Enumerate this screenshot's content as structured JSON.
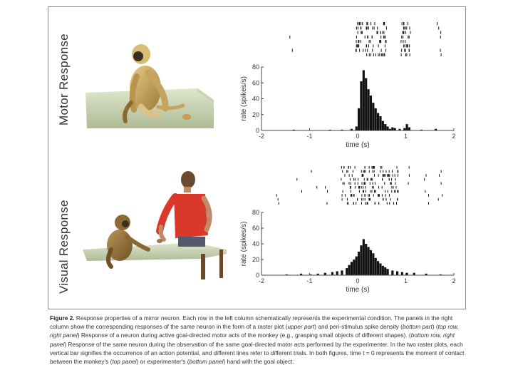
{
  "rows": [
    {
      "label": "Motor Response"
    },
    {
      "label": "Visual Response"
    }
  ],
  "chart_data": [
    {
      "type": "bar",
      "panel": "Motor Response",
      "xlabel": "time (s)",
      "ylabel": "rate (spikes/s)",
      "xlim": [
        -2,
        2
      ],
      "ylim": [
        0,
        80
      ],
      "xticks": [
        -2,
        -1,
        0,
        1,
        2
      ],
      "yticks": [
        0,
        20,
        40,
        60,
        80
      ],
      "bin_width": 0.05,
      "bins": [
        {
          "x": -1.35,
          "y": 1
        },
        {
          "x": -0.6,
          "y": 1
        },
        {
          "x": -0.35,
          "y": 1
        },
        {
          "x": -0.15,
          "y": 2
        },
        {
          "x": -0.05,
          "y": 5
        },
        {
          "x": 0.0,
          "y": 28
        },
        {
          "x": 0.05,
          "y": 62
        },
        {
          "x": 0.1,
          "y": 76
        },
        {
          "x": 0.15,
          "y": 66
        },
        {
          "x": 0.2,
          "y": 52
        },
        {
          "x": 0.25,
          "y": 44
        },
        {
          "x": 0.3,
          "y": 35
        },
        {
          "x": 0.35,
          "y": 28
        },
        {
          "x": 0.4,
          "y": 22
        },
        {
          "x": 0.45,
          "y": 18
        },
        {
          "x": 0.5,
          "y": 12
        },
        {
          "x": 0.55,
          "y": 8
        },
        {
          "x": 0.6,
          "y": 5
        },
        {
          "x": 0.65,
          "y": 2
        },
        {
          "x": 0.7,
          "y": 4
        },
        {
          "x": 0.75,
          "y": 3
        },
        {
          "x": 0.85,
          "y": 2
        },
        {
          "x": 0.95,
          "y": 3
        },
        {
          "x": 1.0,
          "y": 8
        },
        {
          "x": 1.05,
          "y": 4
        },
        {
          "x": 1.3,
          "y": 1
        },
        {
          "x": 1.6,
          "y": 2
        }
      ],
      "raster": {
        "trials": 8,
        "clusters": [
          {
            "start": -0.05,
            "end": 0.6
          },
          {
            "start": 0.9,
            "end": 1.1
          }
        ],
        "isolated": [
          -1.35,
          1.7
        ]
      }
    },
    {
      "type": "bar",
      "panel": "Visual Response",
      "xlabel": "time (s)",
      "ylabel": "rate (spikes/s)",
      "xlim": [
        -2,
        2
      ],
      "ylim": [
        0,
        80
      ],
      "xticks": [
        -2,
        -1,
        0,
        1,
        2
      ],
      "yticks": [
        0,
        20,
        40,
        60,
        80
      ],
      "bin_width": 0.05,
      "bins": [
        {
          "x": -1.5,
          "y": 1
        },
        {
          "x": -1.2,
          "y": 2
        },
        {
          "x": -1.0,
          "y": 1
        },
        {
          "x": -0.85,
          "y": 2
        },
        {
          "x": -0.7,
          "y": 3
        },
        {
          "x": -0.55,
          "y": 4
        },
        {
          "x": -0.45,
          "y": 5
        },
        {
          "x": -0.35,
          "y": 6
        },
        {
          "x": -0.25,
          "y": 9
        },
        {
          "x": -0.2,
          "y": 13
        },
        {
          "x": -0.15,
          "y": 17
        },
        {
          "x": -0.1,
          "y": 20
        },
        {
          "x": -0.05,
          "y": 24
        },
        {
          "x": 0.0,
          "y": 30
        },
        {
          "x": 0.05,
          "y": 38
        },
        {
          "x": 0.1,
          "y": 46
        },
        {
          "x": 0.15,
          "y": 40
        },
        {
          "x": 0.2,
          "y": 36
        },
        {
          "x": 0.25,
          "y": 32
        },
        {
          "x": 0.3,
          "y": 28
        },
        {
          "x": 0.35,
          "y": 22
        },
        {
          "x": 0.4,
          "y": 18
        },
        {
          "x": 0.45,
          "y": 15
        },
        {
          "x": 0.5,
          "y": 12
        },
        {
          "x": 0.55,
          "y": 10
        },
        {
          "x": 0.6,
          "y": 8
        },
        {
          "x": 0.7,
          "y": 6
        },
        {
          "x": 0.8,
          "y": 5
        },
        {
          "x": 0.9,
          "y": 4
        },
        {
          "x": 1.0,
          "y": 3
        },
        {
          "x": 1.15,
          "y": 3
        },
        {
          "x": 1.4,
          "y": 2
        },
        {
          "x": 1.7,
          "y": 1
        }
      ],
      "raster": {
        "trials": 10,
        "clusters": [
          {
            "start": -0.35,
            "end": 0.85
          }
        ],
        "isolated": [
          -1.65,
          -1.2,
          -0.9,
          -0.6,
          1.1,
          1.4,
          1.75
        ]
      }
    }
  ],
  "caption": {
    "label": "Figure 2.",
    "sentence1": " Response properties of a mirror neuron. Each row in the left column schematically represents the experimental condition. The panels in the right column show the corresponding responses of the same neuron in the form of a raster plot (",
    "upper_part": "upper part",
    "sentence2": ") and peri-stimulus spike density (",
    "bottom_part": "bottom part",
    "sentence3": ") (",
    "top_row_right": "top row, right panel",
    "sentence4": ") Response of a neuron during active goal-directed motor acts of the monkey (e.g., grasping small objects of different shapes). (",
    "bottom_row_right": "bottom row, right panel",
    "sentence5": ") Response of the same neuron during the observation of the same goal-directed motor acts performed by the experimenter. In the two raster plots, each vertical bar signifies the occurrence of an action potential, and different lines refer to different trials. In both figures, time t = 0 represents the moment of contact between the monkey's (",
    "top_panel": "top panel",
    "sentence6": ") or experimenter's (",
    "bottom_panel": "bottom panel",
    "sentence7": ") hand with the goal object."
  }
}
